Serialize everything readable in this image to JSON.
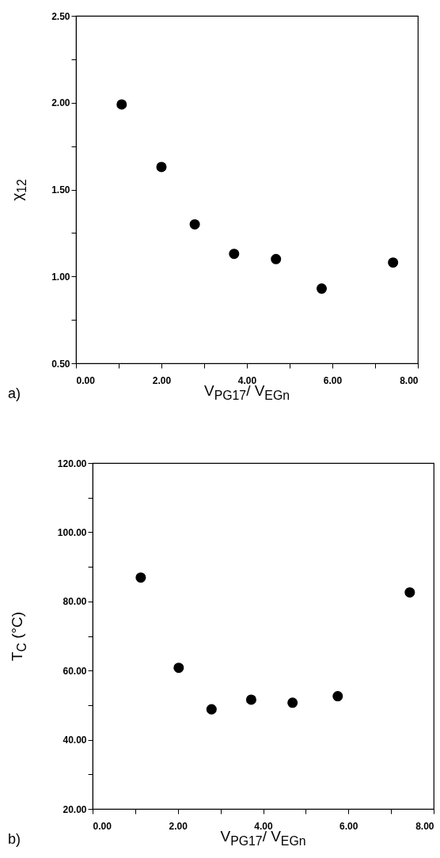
{
  "chart_data": [
    {
      "type": "scatter",
      "xlabel": "V$_{PG17}$/ V$_{EGn}$",
      "ylabel": "χ$_{12}$",
      "annotations": [
        "a)"
      ],
      "marker": "circle",
      "color": "#000000",
      "x": [
        1.07,
        2.0,
        2.78,
        3.7,
        4.68,
        5.75,
        7.42
      ],
      "values": [
        1.99,
        1.63,
        1.3,
        1.13,
        1.1,
        0.93,
        1.08
      ],
      "xlim": [
        0,
        8
      ],
      "ylim": [
        0.5,
        2.5
      ],
      "xticks": [
        {
          "value": 0,
          "label": "0.00"
        },
        {
          "value": 1,
          "label": null
        },
        {
          "value": 2,
          "label": "2.00"
        },
        {
          "value": 3,
          "label": null
        },
        {
          "value": 4,
          "label": "4.00"
        },
        {
          "value": 5,
          "label": null
        },
        {
          "value": 6,
          "label": "6.00"
        },
        {
          "value": 7,
          "label": null
        },
        {
          "value": 8,
          "label": "8.00"
        }
      ],
      "yticks": [
        {
          "value": 0.5,
          "label": "0.50"
        },
        {
          "value": 0.75,
          "label": null
        },
        {
          "value": 1,
          "label": "1.00"
        },
        {
          "value": 1.25,
          "label": null
        },
        {
          "value": 1.5,
          "label": "1.50"
        },
        {
          "value": 1.75,
          "label": null
        },
        {
          "value": 2,
          "label": "2.00"
        },
        {
          "value": 2.25,
          "label": null
        },
        {
          "value": 2.5,
          "label": "2.50"
        }
      ]
    },
    {
      "type": "scatter",
      "xlabel": "V$_{PG17}$/ V$_{EGn}$",
      "ylabel": "T$_{C}$  (°C)",
      "annotations": [
        "b)"
      ],
      "marker": "circle",
      "color": "#000000",
      "x": [
        1.13,
        2.02,
        2.79,
        3.72,
        4.69,
        5.75,
        7.44
      ],
      "values": [
        86.9,
        60.8,
        48.8,
        51.6,
        50.7,
        52.6,
        82.6
      ],
      "xlim": [
        0,
        8
      ],
      "ylim": [
        20,
        120
      ],
      "xticks": [
        {
          "value": 0,
          "label": "0.00"
        },
        {
          "value": 1,
          "label": null
        },
        {
          "value": 2,
          "label": "2.00"
        },
        {
          "value": 3,
          "label": null
        },
        {
          "value": 4,
          "label": "4.00"
        },
        {
          "value": 5,
          "label": null
        },
        {
          "value": 6,
          "label": "6.00"
        },
        {
          "value": 7,
          "label": null
        },
        {
          "value": 8,
          "label": "8.00"
        }
      ],
      "yticks": [
        {
          "value": 20,
          "label": "20.00"
        },
        {
          "value": 30,
          "label": null
        },
        {
          "value": 40,
          "label": "40.00"
        },
        {
          "value": 50,
          "label": null
        },
        {
          "value": 60,
          "label": "60.00"
        },
        {
          "value": 70,
          "label": null
        },
        {
          "value": 80,
          "label": "80.00"
        },
        {
          "value": 90,
          "label": null
        },
        {
          "value": 100,
          "label": "100.00"
        },
        {
          "value": 110,
          "label": null
        },
        {
          "value": 120,
          "label": "120.00"
        }
      ]
    }
  ]
}
